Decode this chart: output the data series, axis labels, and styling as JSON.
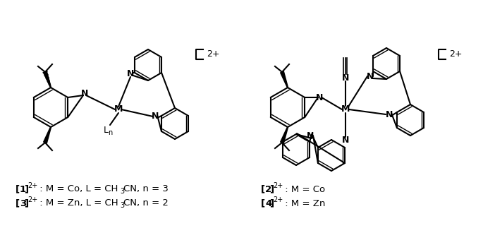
{
  "background_color": "#ffffff",
  "label1_line1": "[1]",
  "label1_sup1": "2+",
  "label1_text1": " : M = Co, L = CH",
  "label1_sub1": "3",
  "label1_text2": "CN, n = 3",
  "label1_line2": "[3]",
  "label1_sup2": "2+",
  "label1_text3": " : M = Zn, L = CH",
  "label1_sub2": "3",
  "label1_text4": "CN, n = 2",
  "label2_line1": "[2]",
  "label2_sup1": "2+",
  "label2_text1": " : M = Co",
  "label2_line2": "[4]",
  "label2_sup2": "2+",
  "label2_text2": " : M = Zn",
  "figsize": [
    6.85,
    3.3
  ],
  "dpi": 100
}
